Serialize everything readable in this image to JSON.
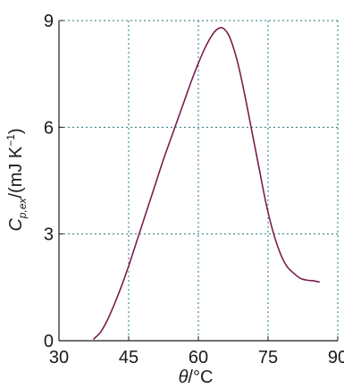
{
  "chart_data": {
    "type": "line",
    "title": "",
    "xlabel": {
      "symbol": "θ",
      "unit": "/°C"
    },
    "ylabel": {
      "symbol": "C",
      "subscript": "p,ex",
      "unit_open": "/(mJ K",
      "unit_superscript": "−1",
      "unit_close": ")"
    },
    "xlim": [
      30,
      90
    ],
    "ylim": [
      0,
      9
    ],
    "xticks": [
      30,
      45,
      60,
      75,
      90
    ],
    "yticks": [
      0,
      3,
      6,
      9
    ],
    "x_tick_labels": [
      "30",
      "45",
      "60",
      "75",
      "90"
    ],
    "y_tick_labels": [
      "0",
      "3",
      "6",
      "9"
    ],
    "grid": true,
    "series": [
      {
        "x": [
          37.5,
          39,
          40.5,
          42,
          43.5,
          45,
          46.5,
          48,
          49.5,
          51,
          52.5,
          54,
          55.5,
          57,
          58.5,
          60,
          61.5,
          63,
          64,
          65,
          66,
          67,
          68.5,
          70,
          71.5,
          73,
          74.5,
          76,
          77.5,
          79,
          80.5,
          82,
          83.5,
          85,
          86
        ],
        "y": [
          0.05,
          0.25,
          0.6,
          1.05,
          1.55,
          2.1,
          2.7,
          3.3,
          3.9,
          4.5,
          5.1,
          5.65,
          6.2,
          6.75,
          7.3,
          7.8,
          8.25,
          8.6,
          8.75,
          8.8,
          8.7,
          8.45,
          7.8,
          6.9,
          5.9,
          4.9,
          3.9,
          3.1,
          2.5,
          2.1,
          1.9,
          1.75,
          1.7,
          1.68,
          1.65
        ]
      }
    ]
  },
  "colors": {
    "curve": "#7a1e4f",
    "grid": "#1e7a7a",
    "axes": "#1a1a1a",
    "text": "#1a1a1a"
  }
}
